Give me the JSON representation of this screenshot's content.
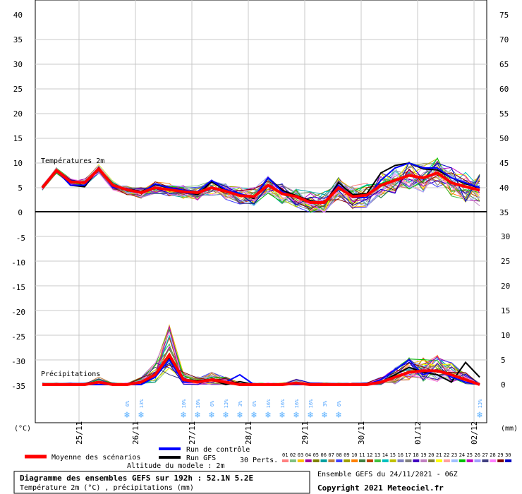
{
  "chart_data": {
    "type": "line",
    "x_dates": [
      "25/11",
      "26/11",
      "27/11",
      "28/11",
      "29/11",
      "30/11",
      "01/12",
      "02/12"
    ],
    "temperature": {
      "label": "Températures 2m",
      "unit": "°C",
      "ylim": [
        0,
        40
      ],
      "yticks_left": [
        0,
        5,
        10,
        15,
        20,
        25,
        30,
        35,
        40
      ],
      "yticks_right": [
        35,
        40,
        45,
        50,
        55,
        60,
        65,
        70,
        75
      ],
      "series": [
        {
          "name": "Moyenne des scénarios",
          "color": "#ff0000",
          "values": [
            5,
            8.5,
            6.2,
            6,
            8.8,
            5.5,
            4.6,
            4,
            5,
            4.6,
            4.2,
            4,
            5,
            4.3,
            3.4,
            3.2,
            5.5,
            3.8,
            3.2,
            2,
            2,
            5,
            3.2,
            3.5,
            5.5,
            6.5,
            7.5,
            7,
            8,
            6,
            5.2,
            4.5
          ]
        },
        {
          "name": "Run de contrôle",
          "color": "#0000ff",
          "values": [
            5,
            8.5,
            5.5,
            5.5,
            9,
            5,
            4.8,
            4,
            5.8,
            5,
            4.5,
            4.2,
            6.5,
            4.6,
            3.8,
            3,
            7,
            4.2,
            3,
            2.2,
            1.8,
            5.5,
            3,
            3,
            6.5,
            9,
            10,
            9,
            9,
            7,
            6,
            5
          ]
        },
        {
          "name": "Run GFS",
          "color": "#000000",
          "values": [
            5,
            8.5,
            5.5,
            5.2,
            9,
            5.2,
            4.8,
            4.2,
            5.6,
            5,
            4.4,
            3.6,
            6.2,
            4.5,
            3.6,
            2.8,
            7,
            4.5,
            3.4,
            2.4,
            1.8,
            6,
            3.6,
            3.8,
            8,
            9.5,
            10,
            8.8,
            8.6,
            7,
            5.8,
            5
          ]
        }
      ],
      "ensemble_members": 30
    },
    "precipitation": {
      "label": "Précipitations",
      "unit": "mm",
      "ylim": [
        -35,
        -5
      ],
      "yticks_left": [
        -5,
        -10,
        -15,
        -20,
        -25,
        -30,
        -35
      ],
      "yticks_right": [
        35,
        30,
        25,
        20,
        15,
        10,
        5,
        0
      ],
      "series": [
        {
          "name": "Moyenne des scénarios",
          "color": "#ff0000",
          "values": [
            0,
            0,
            0,
            0,
            0.5,
            0,
            0,
            0.5,
            2,
            6,
            1,
            0.5,
            1,
            0.5,
            0,
            0,
            0,
            0,
            0.3,
            0,
            0,
            0,
            0,
            0,
            0.5,
            1.5,
            2.5,
            2.8,
            2.8,
            2,
            1,
            0
          ]
        },
        {
          "name": "Run de contrôle",
          "color": "#0000ff",
          "values": [
            0,
            0,
            0,
            0,
            0,
            0,
            0,
            0,
            1.5,
            5,
            0.5,
            0.5,
            1,
            0.5,
            2,
            0,
            0,
            0,
            0,
            0,
            0,
            0,
            0,
            0,
            1,
            3,
            5,
            2,
            3,
            1.5,
            0.5,
            0
          ]
        },
        {
          "name": "Run GFS",
          "color": "#000000",
          "values": [
            0,
            0,
            0,
            0,
            0,
            0,
            0,
            0,
            2,
            5.5,
            1,
            0.8,
            1,
            0,
            0.6,
            0,
            0,
            0,
            0.2,
            0,
            0,
            0,
            0,
            0,
            0.5,
            2,
            3.5,
            2.5,
            2,
            0.5,
            4.5,
            1.5
          ]
        }
      ]
    },
    "snow_percent": [
      {
        "slot": 6,
        "label": "6%"
      },
      {
        "slot": 7,
        "label": "13%"
      },
      {
        "slot": 10,
        "label": "10%"
      },
      {
        "slot": 11,
        "label": "10%"
      },
      {
        "slot": 12,
        "label": "6%"
      },
      {
        "slot": 13,
        "label": "13%"
      },
      {
        "slot": 14,
        "label": "3%"
      },
      {
        "slot": 15,
        "label": "6%"
      },
      {
        "slot": 16,
        "label": "16%"
      },
      {
        "slot": 17,
        "label": "16%"
      },
      {
        "slot": 18,
        "label": "16%"
      },
      {
        "slot": 19,
        "label": "16%"
      },
      {
        "slot": 20,
        "label": "3%"
      },
      {
        "slot": 21,
        "label": "6%"
      },
      {
        "slot": 31,
        "label": "13%"
      }
    ],
    "member_colors": [
      "#ff8080",
      "#80c080",
      "#ffc000",
      "#a000a0",
      "#808000",
      "#00a0a0",
      "#c08040",
      "#4040ff",
      "#a0a000",
      "#ff8000",
      "#408040",
      "#c04000",
      "#40c040",
      "#00c0c0",
      "#c0c000",
      "#8080c0",
      "#808080",
      "#4000c0",
      "#c080c0",
      "#808040",
      "#ffff00",
      "#ffa0a0",
      "#a0c0ff",
      "#00c000",
      "#c000c0",
      "#a0a0ff",
      "#404080",
      "#ff80ff",
      "#800000",
      "#0000c0"
    ]
  },
  "axis": {
    "left_unit": "(°C)",
    "right_unit": "(mm)"
  },
  "legend": {
    "mean": "Moyenne des scénarios",
    "control": "Run de contrôle",
    "gfs": "Run GFS",
    "perts": "30 Perts.",
    "member_numbers": [
      "01",
      "02",
      "03",
      "04",
      "05",
      "06",
      "07",
      "08",
      "09",
      "10",
      "11",
      "12",
      "13",
      "14",
      "15",
      "16",
      "17",
      "18",
      "19",
      "20",
      "21",
      "22",
      "23",
      "24",
      "25",
      "26",
      "27",
      "28",
      "29",
      "30"
    ],
    "altitude": "Altitude du modele : 2m"
  },
  "footer": {
    "title": "Diagramme des ensembles GEFS sur 192h : 52.1N 5.2E",
    "subtitle": "Température 2m (°C) , précipitations (mm)",
    "run": "Ensemble GEFS du 24/11/2021 - 06Z",
    "copyright": "Copyright 2021 Meteociel.fr"
  }
}
